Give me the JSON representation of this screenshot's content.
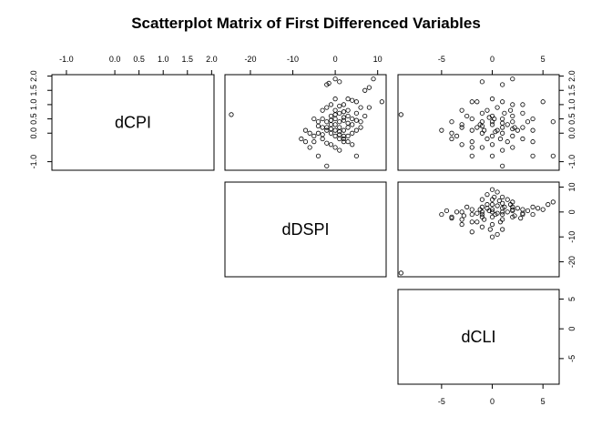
{
  "chart_data": {
    "type": "scatter",
    "title": "Scatterplot Matrix of First Differenced Variables",
    "variables": [
      "dCPI",
      "dDSPI",
      "dCLI"
    ],
    "layout": "upper-triangle",
    "axes": {
      "dCPI": {
        "lim": [
          -1.3,
          2.05
        ],
        "ticks": [
          -1.0,
          0.0,
          0.5,
          1.0,
          1.5,
          2.0
        ],
        "tick_labels": [
          "-1.0",
          "0.0",
          "0.5",
          "1.0",
          "1.5",
          "2.0"
        ]
      },
      "dDSPI": {
        "lim": [
          -26,
          12
        ],
        "ticks": [
          -20,
          -10,
          0,
          10
        ],
        "tick_labels": [
          "-20",
          "-10",
          "0",
          "10"
        ]
      },
      "dCLI": {
        "lim": [
          -9.3,
          6.6
        ],
        "ticks": [
          -5,
          0,
          5
        ],
        "tick_labels": [
          "-5",
          "0",
          "5"
        ]
      }
    },
    "grid": false,
    "legend": "none",
    "panels": [
      {
        "row": 0,
        "col": 1,
        "x_var": "dDSPI",
        "y_var": "dCPI",
        "points": [
          [
            -24.5,
            0.65
          ],
          [
            -2,
            1.7
          ],
          [
            -1.5,
            1.75
          ],
          [
            0,
            1.9
          ],
          [
            1,
            1.8
          ],
          [
            8,
            1.6
          ],
          [
            9,
            1.9
          ],
          [
            7,
            1.5
          ],
          [
            11,
            1.1
          ],
          [
            3,
            1.2
          ],
          [
            4,
            1.15
          ],
          [
            5,
            1.1
          ],
          [
            2,
            1.0
          ],
          [
            -1,
            1.0
          ],
          [
            -2,
            0.9
          ],
          [
            0,
            0.8
          ],
          [
            1,
            0.7
          ],
          [
            2,
            0.75
          ],
          [
            3,
            0.6
          ],
          [
            4,
            0.5
          ],
          [
            5,
            0.7
          ],
          [
            6,
            0.4
          ],
          [
            7,
            0.6
          ],
          [
            8,
            0.9
          ],
          [
            -5,
            0.5
          ],
          [
            -4,
            0.4
          ],
          [
            -3,
            0.5
          ],
          [
            -2,
            0.4
          ],
          [
            -1,
            0.3
          ],
          [
            0,
            0.3
          ],
          [
            1,
            0.2
          ],
          [
            2,
            0.1
          ],
          [
            3,
            0.2
          ],
          [
            4,
            0.0
          ],
          [
            5,
            0.1
          ],
          [
            6,
            0.2
          ],
          [
            -7,
            0.1
          ],
          [
            -6,
            0.0
          ],
          [
            -5,
            -0.1
          ],
          [
            -4,
            0.0
          ],
          [
            -3,
            0.2
          ],
          [
            -2,
            0.1
          ],
          [
            -1,
            0.0
          ],
          [
            0,
            -0.1
          ],
          [
            1,
            -0.2
          ],
          [
            2,
            -0.3
          ],
          [
            3,
            -0.1
          ],
          [
            4,
            -0.4
          ],
          [
            -8,
            -0.2
          ],
          [
            -7,
            -0.3
          ],
          [
            -6,
            -0.5
          ],
          [
            -5,
            -0.3
          ],
          [
            -3,
            -0.2
          ],
          [
            -1,
            -0.4
          ],
          [
            0,
            -0.5
          ],
          [
            1,
            -0.6
          ],
          [
            2,
            -0.2
          ],
          [
            -4,
            -0.8
          ],
          [
            -2,
            -1.15
          ],
          [
            5,
            -0.8
          ],
          [
            0,
            0.5
          ],
          [
            1,
            0.4
          ],
          [
            -1,
            0.6
          ],
          [
            2,
            0.45
          ],
          [
            3,
            0.35
          ],
          [
            -2,
            0.2
          ],
          [
            0,
            0.1
          ],
          [
            1,
            0.05
          ],
          [
            -3,
            -0.05
          ],
          [
            2,
            -0.1
          ],
          [
            4,
            0.3
          ],
          [
            -1,
            0.15
          ],
          [
            3,
            0.8
          ],
          [
            6,
            0.9
          ],
          [
            -3,
            0.8
          ],
          [
            0,
            1.2
          ],
          [
            1,
            0.95
          ],
          [
            -1,
            0.45
          ],
          [
            -4,
            0.25
          ],
          [
            5,
            0.45
          ],
          [
            2,
            0.55
          ],
          [
            -2,
            -0.35
          ],
          [
            0,
            0.65
          ],
          [
            3,
            -0.3
          ],
          [
            1,
            -0.05
          ]
        ]
      },
      {
        "row": 0,
        "col": 2,
        "x_var": "dCLI",
        "y_var": "dCPI",
        "points": [
          [
            -9,
            0.65
          ],
          [
            -1,
            1.8
          ],
          [
            1,
            1.7
          ],
          [
            2,
            1.9
          ],
          [
            0,
            1.2
          ],
          [
            -2,
            1.1
          ],
          [
            -1.5,
            1.1
          ],
          [
            1,
            1.1
          ],
          [
            2,
            1.0
          ],
          [
            5,
            1.1
          ],
          [
            6,
            0.4
          ],
          [
            -3,
            0.8
          ],
          [
            -1,
            0.7
          ],
          [
            0,
            0.6
          ],
          [
            1,
            0.5
          ],
          [
            2,
            0.6
          ],
          [
            3,
            0.7
          ],
          [
            4,
            0.5
          ],
          [
            -4,
            0.4
          ],
          [
            -3,
            0.3
          ],
          [
            -2,
            0.5
          ],
          [
            -1,
            0.4
          ],
          [
            0,
            0.3
          ],
          [
            1,
            0.2
          ],
          [
            2,
            0.4
          ],
          [
            3,
            0.2
          ],
          [
            4,
            0.1
          ],
          [
            -5,
            0.1
          ],
          [
            -4,
            0.0
          ],
          [
            -3,
            0.2
          ],
          [
            -2,
            0.1
          ],
          [
            -1,
            0.0
          ],
          [
            0,
            -0.1
          ],
          [
            1,
            0.0
          ],
          [
            2,
            -0.1
          ],
          [
            3,
            -0.2
          ],
          [
            4,
            -0.3
          ],
          [
            -4,
            -0.2
          ],
          [
            -3,
            -0.4
          ],
          [
            -2,
            -0.3
          ],
          [
            -1,
            -0.5
          ],
          [
            0,
            -0.4
          ],
          [
            1,
            -0.6
          ],
          [
            2,
            -0.5
          ],
          [
            6,
            -0.8
          ],
          [
            -2,
            -0.8
          ],
          [
            0,
            -0.8
          ],
          [
            1,
            -1.15
          ],
          [
            4,
            -0.8
          ],
          [
            0.5,
            0.9
          ],
          [
            -0.5,
            0.8
          ],
          [
            1.5,
            0.3
          ],
          [
            -1.5,
            0.2
          ],
          [
            0.5,
            0.1
          ],
          [
            -0.5,
            -0.2
          ],
          [
            2.5,
            0.1
          ],
          [
            -2.5,
            0.6
          ],
          [
            3.5,
            0.4
          ],
          [
            0.2,
            0.5
          ],
          [
            1.2,
            0.7
          ],
          [
            -1.2,
            0.3
          ],
          [
            2.2,
            0.2
          ],
          [
            0.8,
            -0.2
          ],
          [
            -0.8,
            0.1
          ],
          [
            1.8,
            0.8
          ],
          [
            -3.5,
            -0.1
          ],
          [
            3,
            1.0
          ],
          [
            0,
            0.4
          ],
          [
            1,
            0.35
          ],
          [
            -1,
            0.25
          ],
          [
            2,
            0.15
          ],
          [
            0.3,
            0.05
          ],
          [
            -0.3,
            0.55
          ],
          [
            1.5,
            -0.3
          ],
          [
            -2,
            -0.5
          ]
        ]
      },
      {
        "row": 1,
        "col": 2,
        "x_var": "dCLI",
        "y_var": "dDSPI",
        "points": [
          [
            -9,
            -24.5
          ],
          [
            0,
            9
          ],
          [
            0.5,
            8
          ],
          [
            -0.5,
            7
          ],
          [
            1,
            6
          ],
          [
            0,
            5
          ],
          [
            -1,
            5
          ],
          [
            2,
            4
          ],
          [
            1,
            3.5
          ],
          [
            6,
            4
          ],
          [
            5.5,
            3
          ],
          [
            4,
            2
          ],
          [
            3,
            1
          ],
          [
            2,
            2
          ],
          [
            1,
            1.5
          ],
          [
            0,
            1
          ],
          [
            -1,
            2
          ],
          [
            -2,
            1
          ],
          [
            -3,
            0
          ],
          [
            -2,
            -1
          ],
          [
            -1,
            -1
          ],
          [
            0,
            0
          ],
          [
            1,
            0
          ],
          [
            2,
            0.5
          ],
          [
            3,
            -0.5
          ],
          [
            4,
            -1
          ],
          [
            5,
            1
          ],
          [
            -4,
            -2
          ],
          [
            -3,
            -3
          ],
          [
            -2,
            -4
          ],
          [
            -1,
            -2
          ],
          [
            0,
            -2
          ],
          [
            1,
            -3
          ],
          [
            2,
            -2
          ],
          [
            3,
            -1
          ],
          [
            -5,
            -1
          ],
          [
            -3,
            -5
          ],
          [
            -2,
            -8
          ],
          [
            -1,
            -6
          ],
          [
            0,
            -5
          ],
          [
            1,
            -7
          ],
          [
            0.5,
            -9
          ],
          [
            0,
            -10
          ],
          [
            -3.5,
            0
          ],
          [
            -4,
            -2.5
          ],
          [
            0.5,
            2.5
          ],
          [
            -0.5,
            3
          ],
          [
            1.5,
            0
          ],
          [
            -1.5,
            -0.5
          ],
          [
            2.5,
            1.5
          ],
          [
            0.3,
            -1
          ],
          [
            -0.3,
            0.5
          ],
          [
            1.2,
            2
          ],
          [
            -1.2,
            1
          ],
          [
            2.2,
            -1.5
          ],
          [
            0.8,
            -4
          ],
          [
            -0.8,
            -3
          ],
          [
            1.8,
            3
          ],
          [
            -2.5,
            2
          ],
          [
            3.5,
            0.5
          ],
          [
            0,
            3
          ],
          [
            1,
            -1
          ],
          [
            -1,
            0
          ],
          [
            2,
            1
          ],
          [
            0.2,
            6
          ],
          [
            -0.2,
            -7
          ],
          [
            1.5,
            5
          ],
          [
            -1.5,
            -4
          ],
          [
            0.5,
            -0.5
          ],
          [
            -0.5,
            1.5
          ],
          [
            2.8,
            -2.5
          ],
          [
            -2.8,
            -1.5
          ],
          [
            4.5,
            1.5
          ],
          [
            -4.5,
            0.5
          ],
          [
            0.7,
            4.5
          ]
        ]
      }
    ]
  }
}
